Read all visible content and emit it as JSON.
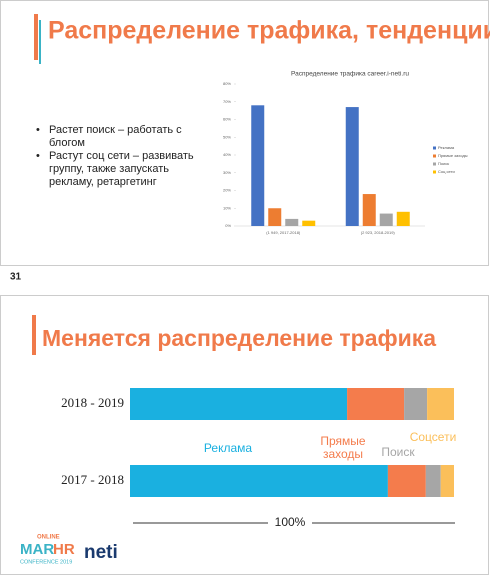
{
  "slide1": {
    "title": "Распределение трафика, тенденции",
    "bullets": [
      "Растет поиск – работать с блогом",
      "Растут соц сети – развивать группу, также запускать рекламу, ретаргетинг"
    ]
  },
  "page_number": "31",
  "slide2": {
    "title": "Меняется распределение трафика"
  },
  "logo": {
    "badge": "ONLINE",
    "mar": "MAR",
    "hr": "HR",
    "conference": "CONFERENCE 2019",
    "brand": "neti"
  },
  "chart_data": [
    {
      "type": "bar",
      "title": "Распределение трафика career.i-neti.ru",
      "categories": [
        "(1 949, 2017-2018)",
        "(2 923, 2018-2019)"
      ],
      "series": [
        {
          "name": "Реклама",
          "color": "#4472c4",
          "values": [
            68,
            67
          ]
        },
        {
          "name": "Прямые заходы",
          "color": "#ed7d31",
          "values": [
            10,
            18
          ]
        },
        {
          "name": "Поиск",
          "color": "#a5a5a5",
          "values": [
            4,
            7
          ]
        },
        {
          "name": "Соц сети",
          "color": "#ffc000",
          "values": [
            3,
            8
          ]
        }
      ],
      "ylim": [
        0,
        80
      ],
      "yticks": [
        {
          "value": 0,
          "label": "0%"
        },
        {
          "value": 10,
          "label": "10%"
        },
        {
          "value": 20,
          "label": "20%"
        },
        {
          "value": 30,
          "label": "30%"
        },
        {
          "value": 40,
          "label": "40%"
        },
        {
          "value": 50,
          "label": "50%"
        },
        {
          "value": 60,
          "label": "60%"
        },
        {
          "value": 70,
          "label": "70%"
        },
        {
          "value": 80,
          "label": "80%"
        }
      ],
      "legend": "right"
    },
    {
      "type": "stacked-barh",
      "annotation": "100%",
      "categories": [
        "2018 - 2019",
        "2017 - 2018"
      ],
      "series": [
        {
          "name": "Реклама",
          "color": "#1ab0e0",
          "values": [
            67,
            79.6
          ]
        },
        {
          "name": "Прямые заходы",
          "color": "#f47c4c",
          "values": [
            17.6,
            11.7
          ]
        },
        {
          "name": "Поиск",
          "color": "#a6a6a6",
          "values": [
            7.1,
            4.6
          ]
        },
        {
          "name": "Соцсети",
          "color": "#fbbf5a",
          "values": [
            8.3,
            4.1
          ]
        }
      ],
      "xlim": [
        0,
        100
      ]
    }
  ]
}
